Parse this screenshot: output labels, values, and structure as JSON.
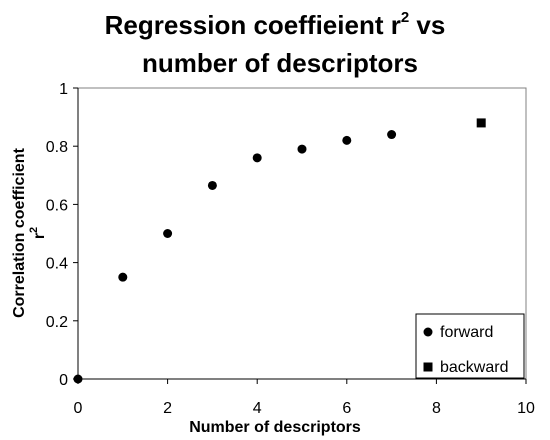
{
  "chart_data": {
    "type": "scatter",
    "title_line1": "Regression coeffieient r",
    "title_sup": "2",
    "title_line1_end": " vs",
    "title_line2": "number of descriptors",
    "xlabel": "Number of descriptors",
    "ylabel_line1": "Correlation coefficient",
    "ylabel_line2": "r",
    "ylabel_sup": "2",
    "xlim": [
      0,
      10
    ],
    "ylim": [
      0,
      1
    ],
    "x_ticks": [
      "0",
      "2",
      "4",
      "6",
      "8",
      "10"
    ],
    "y_ticks": [
      "0",
      "0.2",
      "0.4",
      "0.6",
      "0.8",
      "1"
    ],
    "grid": false,
    "legend_position": "bottom-right",
    "series": [
      {
        "name": "forward",
        "marker": "circle",
        "points": [
          {
            "x": 0,
            "y": 0
          },
          {
            "x": 1,
            "y": 0.35
          },
          {
            "x": 2,
            "y": 0.5
          },
          {
            "x": 3,
            "y": 0.665
          },
          {
            "x": 4,
            "y": 0.76
          },
          {
            "x": 5,
            "y": 0.79
          },
          {
            "x": 6,
            "y": 0.82
          },
          {
            "x": 7,
            "y": 0.84
          }
        ]
      },
      {
        "name": "backward",
        "marker": "square",
        "points": [
          {
            "x": 9,
            "y": 0.88
          }
        ]
      }
    ]
  }
}
